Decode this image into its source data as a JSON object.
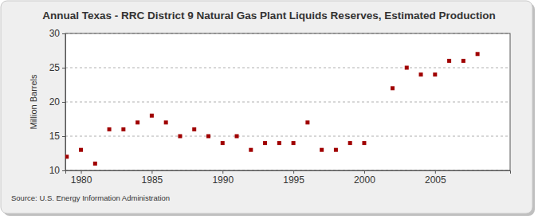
{
  "chart_data": {
    "type": "scatter",
    "title": "Annual Texas - RRC District 9 Natural Gas Plant Liquids Reserves, Estimated Production",
    "y_label": "Million Barrels",
    "source": "Source: U.S. Energy Information Administration",
    "x": [
      1979,
      1980,
      1981,
      1982,
      1983,
      1984,
      1985,
      1986,
      1987,
      1988,
      1989,
      1990,
      1991,
      1992,
      1993,
      1994,
      1995,
      1996,
      1997,
      1998,
      1999,
      2000,
      2002,
      2003,
      2004,
      2005,
      2006,
      2007,
      2008
    ],
    "values": [
      12,
      13,
      11,
      16,
      16,
      17,
      18,
      17,
      15,
      16,
      15,
      14,
      15,
      13,
      14,
      14,
      14,
      17,
      13,
      13,
      14,
      14,
      22,
      25,
      24,
      24,
      26,
      26,
      27
    ],
    "color": "#a00000",
    "marker": "square",
    "xlim": [
      1978.9,
      2010.3
    ],
    "xticks": [
      1980,
      1985,
      1990,
      1995,
      2000,
      2005
    ],
    "ylim": [
      10,
      30
    ],
    "yticks": [
      10,
      15,
      20,
      25,
      30
    ],
    "grid": true
  }
}
